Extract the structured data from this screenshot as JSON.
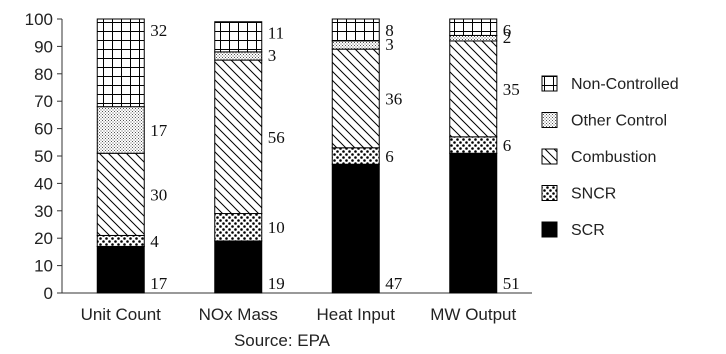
{
  "chart_data": {
    "type": "bar",
    "stacked": true,
    "categories": [
      "Unit Count",
      "NOx Mass",
      "Heat Input",
      "MW Output"
    ],
    "series": [
      {
        "name": "SCR",
        "values": [
          17,
          19,
          47,
          51
        ],
        "pattern": "solid-black"
      },
      {
        "name": "SNCR",
        "values": [
          4,
          10,
          6,
          6
        ],
        "pattern": "dots"
      },
      {
        "name": "Combustion",
        "values": [
          30,
          56,
          36,
          35
        ],
        "pattern": "diagonal-hatch"
      },
      {
        "name": "Other Control",
        "values": [
          17,
          3,
          3,
          2
        ],
        "pattern": "fine-dots"
      },
      {
        "name": "Non-Controlled",
        "values": [
          32,
          11,
          8,
          6
        ],
        "pattern": "grid"
      }
    ],
    "data_labels": [
      [
        "17",
        "4",
        "30",
        "17",
        "32"
      ],
      [
        "19",
        "10",
        "56",
        "3",
        "11"
      ],
      [
        "47",
        "6",
        "36",
        "3",
        "8"
      ],
      [
        "51",
        "6",
        "35",
        "2",
        "6"
      ]
    ],
    "ylim": [
      0,
      100
    ],
    "yticks": [
      "0",
      "10",
      "20",
      "30",
      "40",
      "50",
      "60",
      "70",
      "80",
      "90",
      "100"
    ],
    "legend_order": [
      "Non-Controlled",
      "Other Control",
      "Combustion",
      "SNCR",
      "SCR"
    ],
    "legend_position": "right",
    "source": "Source: EPA",
    "grid": false
  }
}
